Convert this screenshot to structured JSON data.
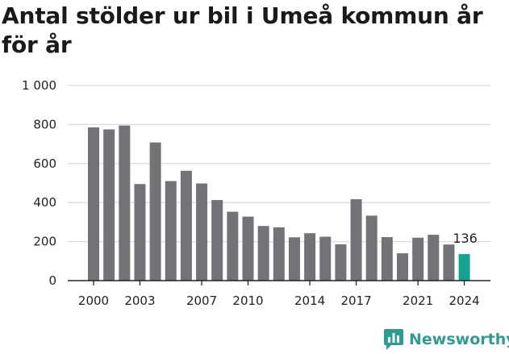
{
  "title": "Antal stölder ur bil i Umeå kommun år för år",
  "brand": {
    "name": "Newsworthy",
    "icon": "newsworthy-logo-icon"
  },
  "colors": {
    "bar": "#737277",
    "highlight": "#12a394",
    "grid": "#dcdcdc",
    "axis": "#222222",
    "brand": "#2e9c96"
  },
  "chart_data": {
    "type": "bar",
    "title": "Antal stölder ur bil i Umeå kommun år för år",
    "xlabel": "",
    "ylabel": "",
    "ylim": [
      0,
      1000
    ],
    "yticks": [
      0,
      200,
      400,
      600,
      800,
      1000
    ],
    "ytick_labels": [
      "0",
      "200",
      "400",
      "600",
      "800",
      "1 000"
    ],
    "xtick_labels": [
      "2000",
      "2003",
      "2007",
      "2010",
      "2014",
      "2017",
      "2021",
      "2024"
    ],
    "categories": [
      2000,
      2001,
      2002,
      2003,
      2004,
      2005,
      2006,
      2007,
      2008,
      2009,
      2010,
      2011,
      2012,
      2013,
      2014,
      2015,
      2016,
      2017,
      2018,
      2019,
      2020,
      2021,
      2022,
      2023,
      2024
    ],
    "values": [
      785,
      775,
      795,
      495,
      708,
      510,
      563,
      498,
      413,
      353,
      328,
      280,
      273,
      222,
      243,
      225,
      186,
      417,
      333,
      223,
      140,
      220,
      235,
      185,
      136
    ],
    "highlight": {
      "category": 2024,
      "label": "136"
    },
    "grid": true,
    "legend": "none"
  }
}
